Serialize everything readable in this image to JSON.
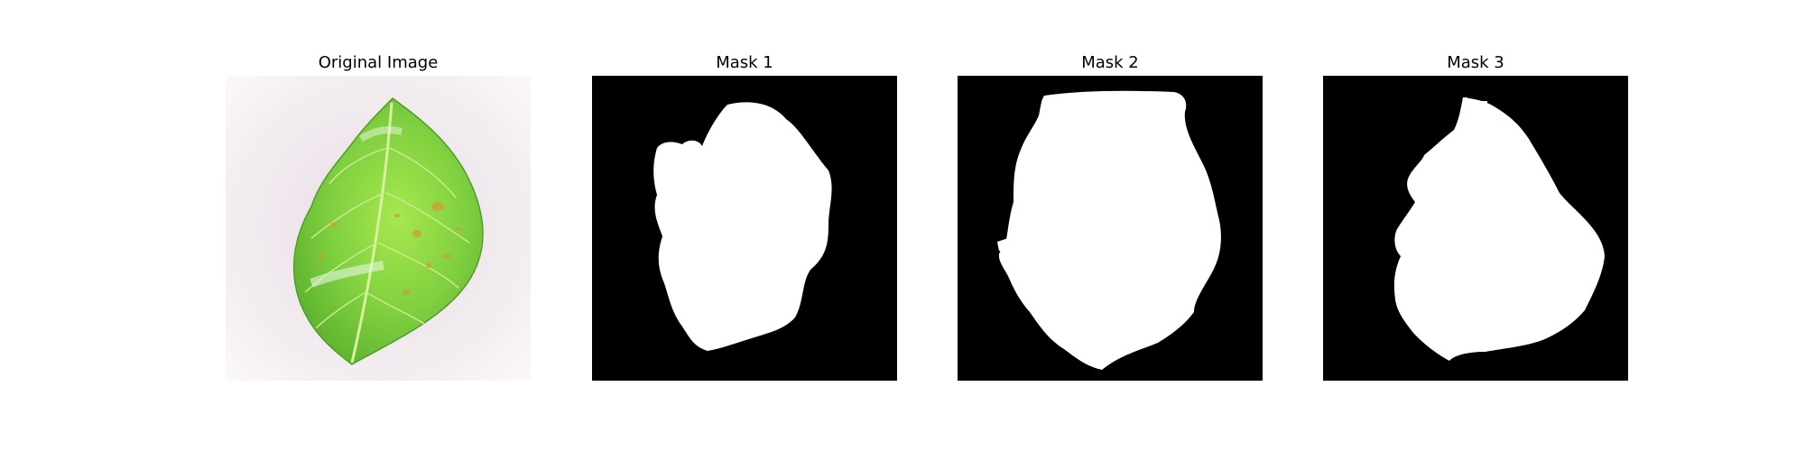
{
  "figure": {
    "panels": [
      {
        "title": "Original Image",
        "content": "photograph of a green leaf with small brown lesions on a light background"
      },
      {
        "title": "Mask 1",
        "content": "binary segmentation mask, white leaf region on black"
      },
      {
        "title": "Mask 2",
        "content": "binary segmentation mask, white leaf region on black"
      },
      {
        "title": "Mask 3",
        "content": "binary segmentation mask, white leaf region on black"
      }
    ]
  },
  "colors": {
    "mask_background": "#000000",
    "mask_foreground": "#ffffff",
    "leaf_green": "#7fd03f",
    "photo_background": "#f1e9ee"
  }
}
